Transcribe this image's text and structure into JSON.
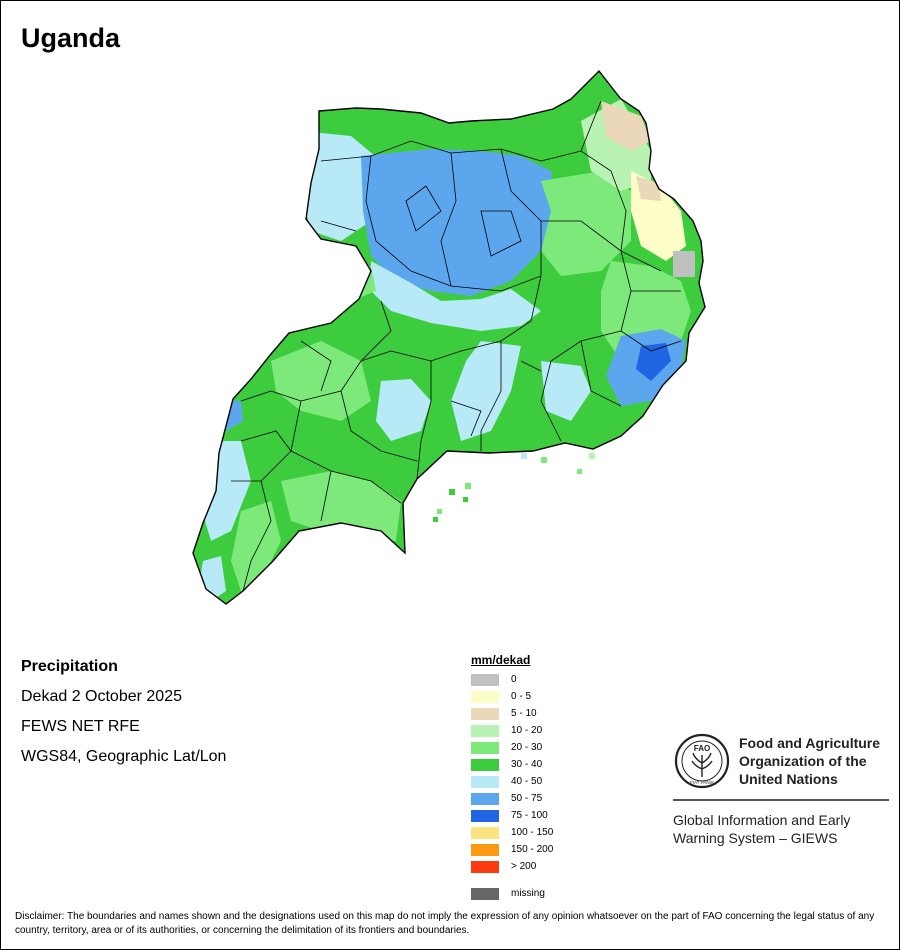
{
  "title": "Uganda",
  "info": {
    "heading": "Precipitation",
    "period": "Dekad 2 October 2025",
    "source": "FEWS NET RFE",
    "projection": "WGS84, Geographic Lat/Lon"
  },
  "legend": {
    "title": "mm/dekad",
    "items": [
      {
        "label": "0",
        "color": "#c0c0c0"
      },
      {
        "label": "0 - 5",
        "color": "#fdfdc8"
      },
      {
        "label": "5 - 10",
        "color": "#ead8b8"
      },
      {
        "label": "10 - 20",
        "color": "#b9f3b3"
      },
      {
        "label": "20 - 30",
        "color": "#7ce97a"
      },
      {
        "label": "30 - 40",
        "color": "#3dcc3d"
      },
      {
        "label": "40 - 50",
        "color": "#b7eaf6"
      },
      {
        "label": "50 - 75",
        "color": "#5ca6ee"
      },
      {
        "label": "75 - 100",
        "color": "#2065e4"
      },
      {
        "label": "100 - 150",
        "color": "#fde380"
      },
      {
        "label": "150 - 200",
        "color": "#fd9a12"
      },
      {
        "label": "> 200",
        "color": "#fa3c10"
      }
    ],
    "missing": {
      "label": "missing",
      "color": "#666666"
    }
  },
  "organization": {
    "logo_letters": "FAO",
    "logo_motto": "FIAT PANIS",
    "name_line1": "Food and Agriculture",
    "name_line2": "Organization of the",
    "name_line3": "United Nations",
    "system_line1": "Global Information and Early",
    "system_line2": "Warning System – GIEWS"
  },
  "disclaimer": "Disclaimer: The boundaries and names shown and the designations used on this map do not imply the expression of any opinion whatsoever on the part of FAO concerning the legal status of any country, territory, area or of its authorities, or concerning the delimitation of its frontiers and boundaries."
}
